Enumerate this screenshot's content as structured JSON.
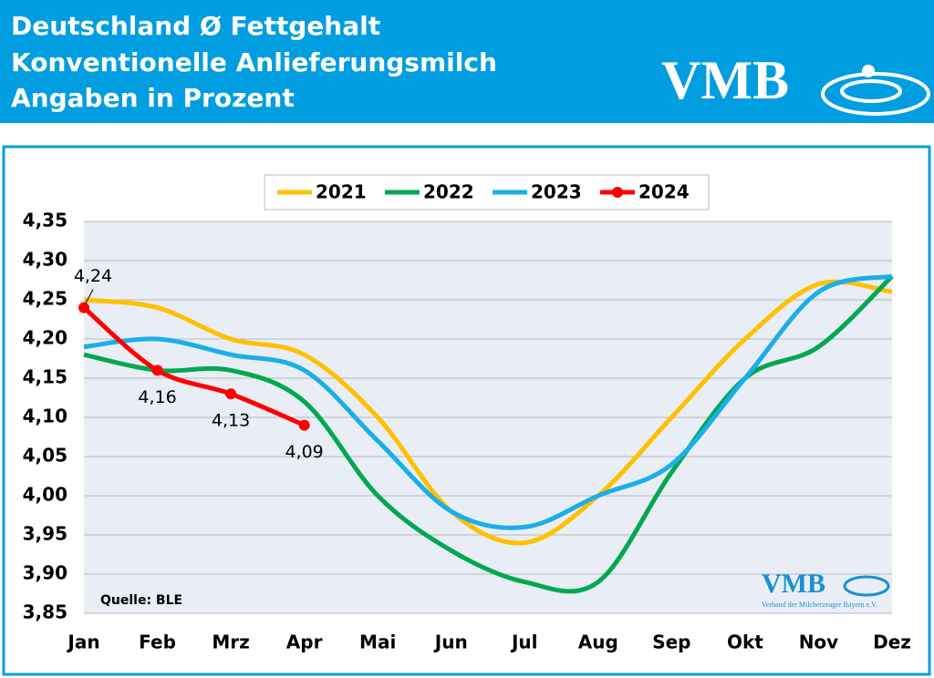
{
  "header": {
    "title_lines": [
      "Deutschland Ø Fettgehalt",
      "Konventionelle Anlieferungsmilch",
      "Angaben in Prozent"
    ],
    "logo": "VMB"
  },
  "chart_data": {
    "type": "line",
    "categories": [
      "Jan",
      "Feb",
      "Mrz",
      "Apr",
      "Mai",
      "Jun",
      "Jul",
      "Aug",
      "Sep",
      "Okt",
      "Nov",
      "Dez"
    ],
    "series": [
      {
        "name": "2021",
        "color": "#ffc000",
        "values": [
          4.25,
          4.24,
          4.2,
          4.18,
          4.1,
          3.98,
          3.94,
          4.0,
          4.1,
          4.2,
          4.27,
          4.26
        ]
      },
      {
        "name": "2022",
        "color": "#00a84f",
        "values": [
          4.18,
          4.16,
          4.16,
          4.12,
          4.0,
          3.93,
          3.89,
          3.89,
          4.03,
          4.15,
          4.19,
          4.28
        ]
      },
      {
        "name": "2023",
        "color": "#1aaeea",
        "values": [
          4.19,
          4.2,
          4.18,
          4.16,
          4.07,
          3.98,
          3.96,
          4.0,
          4.04,
          4.15,
          4.26,
          4.28
        ]
      },
      {
        "name": "2024",
        "color": "#ff0000",
        "markers": true,
        "values": [
          4.24,
          4.16,
          4.13,
          4.09,
          null,
          null,
          null,
          null,
          null,
          null,
          null,
          null
        ],
        "value_labels": [
          "4,24",
          "4,16",
          "4,13",
          "4,09",
          null,
          null,
          null,
          null,
          null,
          null,
          null,
          null
        ]
      }
    ],
    "ylim": [
      3.85,
      4.35
    ],
    "yticks": [
      {
        "value": 3.85,
        "label": "3,85"
      },
      {
        "value": 3.9,
        "label": "3,90"
      },
      {
        "value": 3.95,
        "label": "3,95"
      },
      {
        "value": 4.0,
        "label": "4,00"
      },
      {
        "value": 4.05,
        "label": "4,05"
      },
      {
        "value": 4.1,
        "label": "4,10"
      },
      {
        "value": 4.15,
        "label": "4,15"
      },
      {
        "value": 4.2,
        "label": "4,20"
      },
      {
        "value": 4.25,
        "label": "4,25"
      },
      {
        "value": 4.3,
        "label": "4,30"
      },
      {
        "value": 4.35,
        "label": "4,35"
      }
    ],
    "grid": true,
    "legend": "top",
    "source": "Quelle: BLE",
    "watermark": "VMB",
    "watermark_subtitle": "Verband der Milcherzeuger Bayern e.V."
  }
}
